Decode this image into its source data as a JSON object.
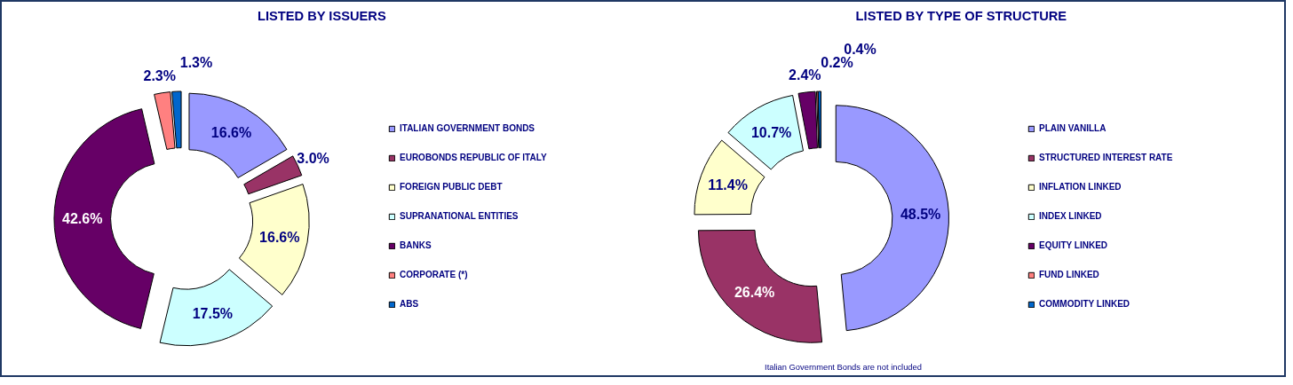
{
  "chart_data": [
    {
      "type": "donut",
      "title": "LISTED BY ISSUERS",
      "categories": [
        "ITALIAN GOVERNMENT BONDS",
        "EUROBONDS REPUBLIC OF ITALY",
        "FOREIGN PUBLIC DEBT",
        "SUPRANATIONAL ENTITIES",
        "BANKS",
        "CORPORATE (*)",
        "ABS"
      ],
      "values": [
        16.6,
        3.0,
        16.6,
        17.5,
        42.6,
        2.3,
        1.3
      ],
      "colors": [
        "#9999ff",
        "#993366",
        "#ffffcc",
        "#ccffff",
        "#660066",
        "#ff8080",
        "#0066cc"
      ],
      "value_labels": [
        "16.6%",
        "3.0%",
        "16.6%",
        "17.5%",
        "42.6%",
        "2.3%",
        "1.3%"
      ],
      "legend": "right"
    },
    {
      "type": "donut",
      "title": "LISTED BY TYPE OF STRUCTURE",
      "categories": [
        "PLAIN VANILLA",
        "STRUCTURED INTEREST RATE",
        "INFLATION LINKED",
        "INDEX LINKED",
        "EQUITY LINKED",
        "FUND LINKED",
        "COMMODITY LINKED"
      ],
      "values": [
        48.5,
        26.4,
        11.4,
        10.7,
        2.4,
        0.2,
        0.4
      ],
      "colors": [
        "#9999ff",
        "#993366",
        "#ffffcc",
        "#ccffff",
        "#660066",
        "#ff8080",
        "#0066cc"
      ],
      "value_labels": [
        "48.5%",
        "26.4%",
        "11.4%",
        "10.7%",
        "2.4%",
        "0.2%",
        "0.4%"
      ],
      "legend": "right",
      "annotations": [
        "Italian Government Bonds are not included"
      ]
    }
  ]
}
